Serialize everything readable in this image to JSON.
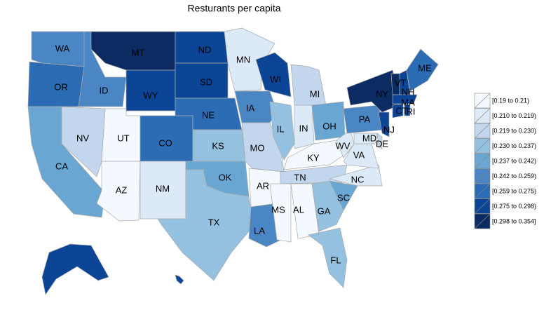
{
  "title": "Resturants per capita",
  "states": [
    {
      "label": "WA",
      "color": "#4a86c4"
    },
    {
      "label": "OR",
      "color": "#2b6cb4"
    },
    {
      "label": "CA",
      "color": "#6aa6d2"
    },
    {
      "label": "NV",
      "color": "#c2d7ee"
    },
    {
      "label": "ID",
      "color": "#4a86c4"
    },
    {
      "label": "MT",
      "color": "#0c2b62"
    },
    {
      "label": "WY",
      "color": "#0d4596"
    },
    {
      "label": "UT",
      "color": "#f4f9ff"
    },
    {
      "label": "AZ",
      "color": "#f4f9ff"
    },
    {
      "label": "CO",
      "color": "#2b6cb4"
    },
    {
      "label": "NM",
      "color": "#dce9f6"
    },
    {
      "label": "ND",
      "color": "#0d4596"
    },
    {
      "label": "SD",
      "color": "#0d4596"
    },
    {
      "label": "NE",
      "color": "#2b6cb4"
    },
    {
      "label": "KS",
      "color": "#93c1df"
    },
    {
      "label": "OK",
      "color": "#6aa6d2"
    },
    {
      "label": "TX",
      "color": "#93c1df"
    },
    {
      "label": "MN",
      "color": "#dce9f6"
    },
    {
      "label": "IA",
      "color": "#4a86c4"
    },
    {
      "label": "MO",
      "color": "#c2d7ee"
    },
    {
      "label": "AR",
      "color": "#f4f9ff"
    },
    {
      "label": "LA",
      "color": "#4a86c4"
    },
    {
      "label": "WI",
      "color": "#0d4596"
    },
    {
      "label": "IL",
      "color": "#93c1df"
    },
    {
      "label": "MI",
      "color": "#c2d7ee"
    },
    {
      "label": "IN",
      "color": "#dce9f6"
    },
    {
      "label": "OH",
      "color": "#6aa6d2"
    },
    {
      "label": "KY",
      "color": "#f4f9ff"
    },
    {
      "label": "TN",
      "color": "#c2d7ee"
    },
    {
      "label": "MS",
      "color": "#f4f9ff"
    },
    {
      "label": "AL",
      "color": "#f4f9ff"
    },
    {
      "label": "GA",
      "color": "#93c1df"
    },
    {
      "label": "FL",
      "color": "#93c1df"
    },
    {
      "label": "SC",
      "color": "#6aa6d2"
    },
    {
      "label": "NC",
      "color": "#dce9f6"
    },
    {
      "label": "VA",
      "color": "#dce9f6"
    },
    {
      "label": "WV",
      "color": "#dce9f6"
    },
    {
      "label": "MD",
      "color": "#dce9f6"
    },
    {
      "label": "DE",
      "color": "#c2d7ee"
    },
    {
      "label": "PA",
      "color": "#4a86c4"
    },
    {
      "label": "NY",
      "color": "#0c2b62"
    },
    {
      "label": "NJ",
      "color": "#0d4596"
    },
    {
      "label": "CT",
      "color": "#0d4596"
    },
    {
      "label": "RI",
      "color": "#0d4596"
    },
    {
      "label": "MA",
      "color": "#0d4596"
    },
    {
      "label": "VT",
      "color": "#0c2b62"
    },
    {
      "label": "NH",
      "color": "#0d4596"
    },
    {
      "label": "ME",
      "color": "#2b6cb4"
    },
    {
      "label": null,
      "color": "#0d4596"
    },
    {
      "label": null,
      "color": "#0d4596"
    }
  ],
  "legend": [
    {
      "label": "[0.19 to 0.21)",
      "color": "#f4f9ff"
    },
    {
      "label": "[0.210 to 0.219)",
      "color": "#dce9f6"
    },
    {
      "label": "[0.219 to 0.230)",
      "color": "#c2d7ee"
    },
    {
      "label": "[0.230 to 0.237)",
      "color": "#93c1df"
    },
    {
      "label": "[0.237 to 0.242)",
      "color": "#6aa6d2"
    },
    {
      "label": "[0.242 to 0.259)",
      "color": "#4a86c4"
    },
    {
      "label": "[0.259 to 0.275)",
      "color": "#2b6cb4"
    },
    {
      "label": "[0.275 to 0.298)",
      "color": "#0d4596"
    },
    {
      "label": "[0.298 to 0.354]",
      "color": "#0c2b62"
    }
  ]
}
